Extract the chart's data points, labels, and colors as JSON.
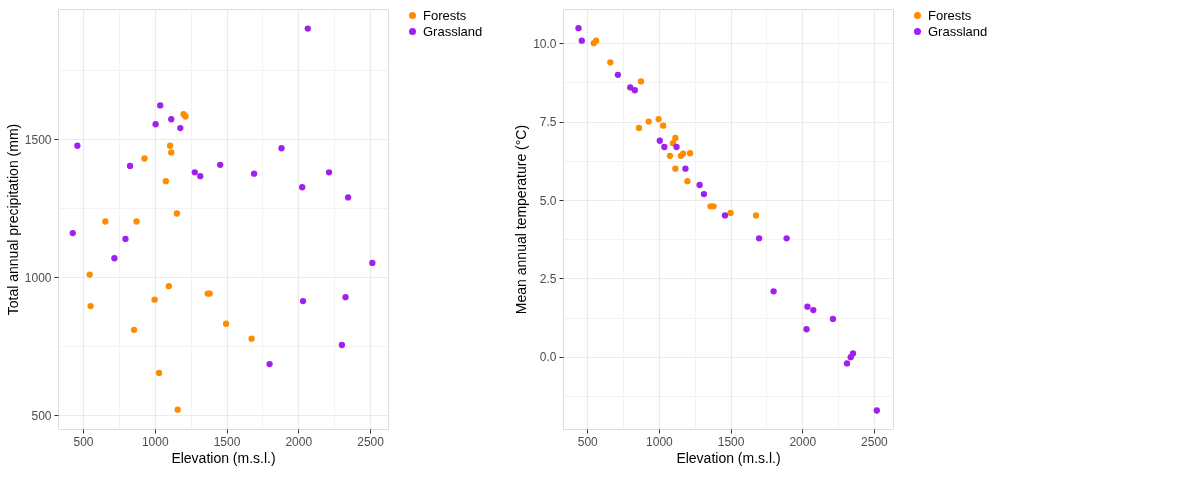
{
  "chart_data": [
    {
      "type": "scatter",
      "xlabel": "Elevation (m.s.l.)",
      "ylabel": "Total annual precipitation (mm)",
      "xlim": [
        326,
        2625
      ],
      "ylim": [
        451,
        1971
      ],
      "xticks": [
        500,
        {
          "value": 750,
          "label": null
        },
        1000,
        {
          "value": 1250,
          "label": null
        },
        1500,
        {
          "value": 1750,
          "label": null
        },
        2000,
        {
          "value": 2250,
          "label": null
        },
        2500
      ],
      "yticks": [
        500,
        {
          "value": 750,
          "label": null
        },
        1000,
        {
          "value": 1250,
          "label": null
        },
        1500,
        {
          "value": 1750,
          "label": null
        }
      ],
      "grid": true,
      "legend": "right",
      "marker": "circle",
      "series": [
        {
          "name": "Forests",
          "color": "#ff8c00",
          "x": [
            1201,
            1214,
            1107,
            1115,
            929,
            1077,
            1154,
            656,
            873,
            547,
            1098,
            1369,
            1383,
            999,
            553,
            1497,
            856,
            1675,
            1030,
            1160
          ],
          "values": [
            1590,
            1582,
            1476,
            1452,
            1430,
            1348,
            1231,
            1202,
            1202,
            1010,
            968,
            941,
            941,
            919,
            896,
            832,
            810,
            778,
            654,
            521
          ]
        },
        {
          "name": "Grassland",
          "color": "#a020f0",
          "x": [
            2066,
            1038,
            1115,
            1006,
            1178,
            461,
            1883,
            828,
            1456,
            1279,
            1317,
            1692,
            2214,
            2027,
            2347,
            429,
            796,
            719,
            2516,
            2033,
            2329,
            2304,
            1800
          ],
          "values": [
            1900,
            1622,
            1572,
            1554,
            1540,
            1476,
            1467,
            1403,
            1407,
            1380,
            1366,
            1375,
            1380,
            1326,
            1289,
            1160,
            1139,
            1069,
            1052,
            914,
            928,
            755,
            686
          ]
        }
      ]
    },
    {
      "type": "scatter",
      "xlabel": "Elevation (m.s.l.)",
      "ylabel": "Mean annual temperature (°C)",
      "xlim": [
        331,
        2633
      ],
      "ylim": [
        -2.3,
        11.09
      ],
      "xticks": [
        500,
        {
          "value": 750,
          "label": null
        },
        1000,
        {
          "value": 1250,
          "label": null
        },
        1500,
        {
          "value": 1750,
          "label": null
        },
        2000,
        {
          "value": 2250,
          "label": null
        },
        2500
      ],
      "yticks": [
        {
          "value": -1.25,
          "label": null
        },
        {
          "value": 0,
          "label": "0.0"
        },
        {
          "value": 1.25,
          "label": null
        },
        {
          "value": 2.5,
          "label": "2.5"
        },
        {
          "value": 3.75,
          "label": null
        },
        {
          "value": 5,
          "label": "5.0"
        },
        {
          "value": 6.25,
          "label": null
        },
        {
          "value": 7.5,
          "label": "7.5"
        },
        {
          "value": 8.75,
          "label": null
        },
        {
          "value": 10,
          "label": "10.0"
        }
      ],
      "grid": true,
      "legend": "right",
      "marker": "circle",
      "series": [
        {
          "name": "Forests",
          "color": "#ff8c00",
          "x": [
            546,
            562,
            661,
            875,
            861,
            929,
            998,
            1030,
            1098,
            1115,
            1077,
            1153,
            1169,
            1217,
            1115,
            1199,
            1360,
            1381,
            1500,
            1677
          ],
          "values": [
            10.0,
            10.08,
            9.39,
            8.78,
            7.3,
            7.5,
            7.58,
            7.37,
            6.81,
            6.98,
            6.41,
            6.41,
            6.48,
            6.49,
            6.0,
            5.6,
            4.8,
            4.8,
            4.59,
            4.51
          ]
        },
        {
          "name": "Grassland",
          "color": "#a020f0",
          "x": [
            439,
            462,
            714,
            800,
            832,
            1006,
            1038,
            1123,
            1185,
            1284,
            1314,
            1461,
            1699,
            1891,
            1800,
            2036,
            2077,
            2214,
            2030,
            2312,
            2338,
            2354,
            2520
          ],
          "values": [
            10.48,
            10.08,
            8.99,
            8.59,
            8.5,
            6.89,
            6.69,
            6.69,
            6.0,
            5.48,
            5.19,
            4.51,
            3.78,
            3.78,
            2.09,
            1.6,
            1.49,
            1.21,
            0.88,
            -0.21,
            -0.01,
            0.11,
            -1.71
          ]
        }
      ]
    }
  ]
}
